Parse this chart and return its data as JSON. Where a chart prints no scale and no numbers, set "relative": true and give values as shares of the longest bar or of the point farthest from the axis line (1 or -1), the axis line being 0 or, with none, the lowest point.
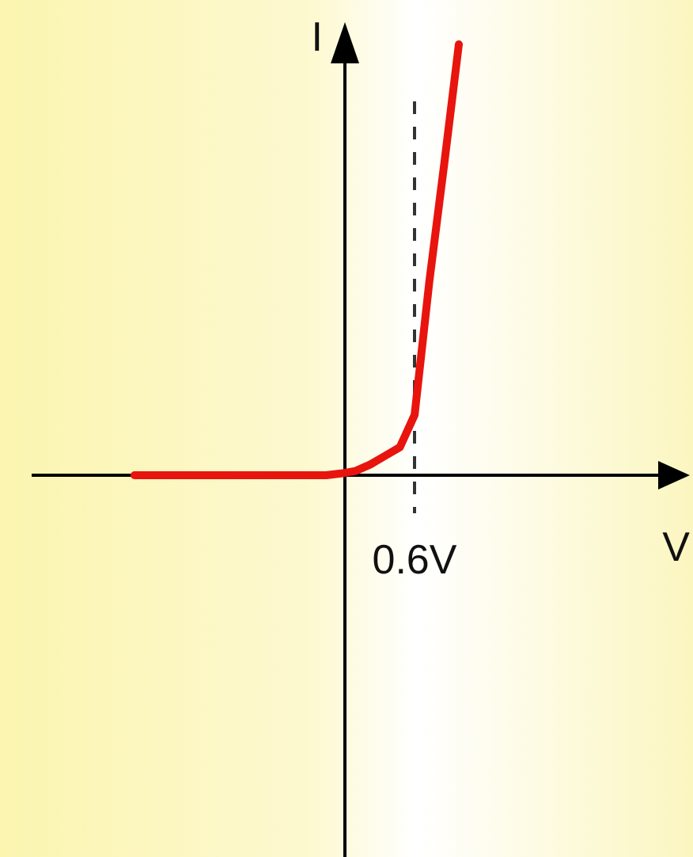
{
  "chart_data": {
    "type": "line",
    "relative": true,
    "xlabel": "V",
    "ylabel": "I",
    "categories": [
      null,
      null,
      null,
      null,
      null,
      null,
      null,
      null,
      null,
      null,
      null,
      null,
      null,
      null,
      null,
      null,
      null,
      null,
      null,
      null,
      null,
      null,
      null
    ],
    "series": [
      {
        "color": "#e8140e",
        "values": [
          0,
          0,
          0,
          0,
          0,
          0,
          0,
          0,
          0,
          0,
          0,
          0,
          0,
          0,
          0.004,
          0.01,
          0.025,
          0.045,
          0.065,
          0.14,
          0.45,
          0.72,
          1
        ]
      }
    ],
    "annotations": [
      "0.6V"
    ],
    "legend": false,
    "marker": "none",
    "line_style": "solid"
  }
}
